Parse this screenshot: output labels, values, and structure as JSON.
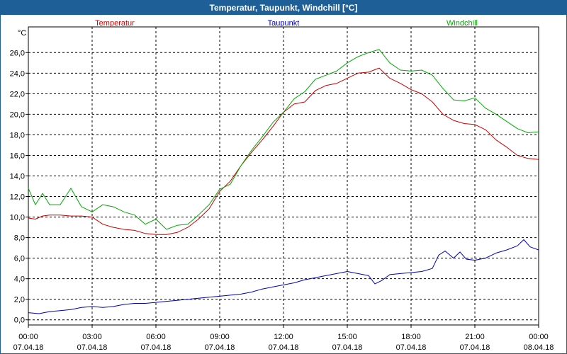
{
  "window": {
    "title": "Temperatur, Taupunkt, Windchill [°C]"
  },
  "colors": {
    "frame": "#1f5f97",
    "temperatur": "#cc0000",
    "taupunkt": "#0000bb",
    "windchill": "#00aa00",
    "grid": "#000000"
  },
  "chart_data": {
    "type": "line",
    "title": "Temperatur, Taupunkt, Windchill [°C]",
    "ylabel": "°C",
    "ylim": [
      -0.5,
      28.5
    ],
    "xlim": [
      0,
      24
    ],
    "grid": true,
    "legend_position": "top",
    "yticks": [
      0,
      2,
      4,
      6,
      8,
      10,
      12,
      14,
      16,
      18,
      20,
      22,
      24,
      26
    ],
    "ytick_labels": [
      "0,0",
      "2,0",
      "4,0",
      "6,0",
      "8,0",
      "10,0",
      "12,0",
      "14,0",
      "16,0",
      "18,0",
      "20,0",
      "22,0",
      "24,0",
      "26,0"
    ],
    "xticks": [
      {
        "x": 0,
        "time": "00:00",
        "date": "07.04.18"
      },
      {
        "x": 3,
        "time": "03:00",
        "date": "07.04.18"
      },
      {
        "x": 6,
        "time": "06:00",
        "date": "07.04.18"
      },
      {
        "x": 9,
        "time": "09:00",
        "date": "07.04.18"
      },
      {
        "x": 12,
        "time": "12:00",
        "date": "07.04.18"
      },
      {
        "x": 15,
        "time": "15:00",
        "date": "07.04.18"
      },
      {
        "x": 18,
        "time": "18:00",
        "date": "07.04.18"
      },
      {
        "x": 21,
        "time": "21:00",
        "date": "07.04.18"
      },
      {
        "x": 24,
        "time": "00:00",
        "date": "08.04.18"
      }
    ],
    "series": [
      {
        "name": "Temperatur",
        "color": "#cc0000",
        "x": [
          0,
          0.33,
          0.67,
          1,
          1.5,
          2,
          2.5,
          3,
          3.5,
          4,
          4.5,
          5,
          5.5,
          6,
          6.5,
          7,
          7.5,
          8,
          8.5,
          9,
          9.5,
          10,
          10.5,
          11,
          11.5,
          12,
          12.5,
          13,
          13.5,
          14,
          14.5,
          15,
          15.5,
          16,
          16.5,
          17,
          17.5,
          18,
          18.5,
          19,
          19.5,
          20,
          20.5,
          21,
          21.5,
          22,
          22.5,
          23,
          23.5,
          24
        ],
        "values": [
          9.9,
          9.8,
          10.1,
          10.2,
          10.2,
          10.1,
          10.1,
          10.0,
          9.3,
          9.0,
          8.8,
          8.7,
          8.4,
          8.3,
          8.3,
          8.5,
          9.0,
          9.8,
          10.8,
          12.5,
          13.5,
          15.0,
          16.3,
          17.5,
          18.8,
          20.2,
          21.0,
          21.2,
          22.3,
          22.8,
          23.0,
          23.5,
          24.0,
          24.1,
          24.5,
          23.5,
          23.0,
          22.4,
          22.0,
          21.2,
          20.0,
          19.4,
          19.1,
          19.0,
          18.5,
          17.5,
          16.8,
          16.0,
          15.7,
          15.6
        ]
      },
      {
        "name": "Taupunkt",
        "color": "#0000bb",
        "x": [
          0,
          0.5,
          1,
          1.5,
          2,
          2.5,
          3,
          3.5,
          4,
          4.5,
          5,
          5.5,
          6,
          6.5,
          7,
          7.5,
          8,
          8.5,
          9,
          9.5,
          10,
          10.5,
          11,
          11.5,
          12,
          12.5,
          13,
          13.5,
          14,
          14.5,
          15,
          15.5,
          16,
          16.3,
          16.6,
          17,
          17.5,
          18,
          18.5,
          19,
          19.3,
          19.6,
          20,
          20.3,
          20.6,
          21,
          21.5,
          22,
          22.5,
          23,
          23.3,
          23.6,
          24
        ],
        "values": [
          0.7,
          0.6,
          0.8,
          0.9,
          1.0,
          1.2,
          1.3,
          1.2,
          1.3,
          1.5,
          1.6,
          1.6,
          1.7,
          1.8,
          1.9,
          2.0,
          2.1,
          2.2,
          2.3,
          2.4,
          2.5,
          2.7,
          3.0,
          3.2,
          3.4,
          3.6,
          3.9,
          4.1,
          4.3,
          4.5,
          4.7,
          4.5,
          4.3,
          3.5,
          3.8,
          4.4,
          4.5,
          4.6,
          4.7,
          5.0,
          6.3,
          6.7,
          6.0,
          6.6,
          5.9,
          5.8,
          6.0,
          6.5,
          6.8,
          7.2,
          7.8,
          7.1,
          6.8
        ]
      },
      {
        "name": "Windchill",
        "color": "#00aa00",
        "x": [
          0,
          0.33,
          0.67,
          1,
          1.5,
          2,
          2.5,
          3,
          3.5,
          4,
          4.5,
          5,
          5.5,
          6,
          6.5,
          7,
          7.5,
          8,
          8.5,
          9,
          9.5,
          10,
          10.5,
          11,
          11.5,
          12,
          12.5,
          13,
          13.5,
          14,
          14.5,
          15,
          15.5,
          16,
          16.5,
          17,
          17.5,
          18,
          18.5,
          19,
          19.5,
          20,
          20.5,
          21,
          21.5,
          22,
          22.5,
          23,
          23.5,
          24
        ],
        "values": [
          12.8,
          11.2,
          12.3,
          11.2,
          11.2,
          12.8,
          11.0,
          10.5,
          11.2,
          11.0,
          10.5,
          10.2,
          9.3,
          9.8,
          8.8,
          9.2,
          9.3,
          10.2,
          11.2,
          12.7,
          13.2,
          15.0,
          16.5,
          17.8,
          19.2,
          20.2,
          21.5,
          22.2,
          23.4,
          23.8,
          24.2,
          25.0,
          25.6,
          26.0,
          26.3,
          25.0,
          24.3,
          24.2,
          24.3,
          23.8,
          22.5,
          21.4,
          21.3,
          21.6,
          20.6,
          20.0,
          19.3,
          18.6,
          18.2,
          18.3
        ]
      }
    ]
  }
}
